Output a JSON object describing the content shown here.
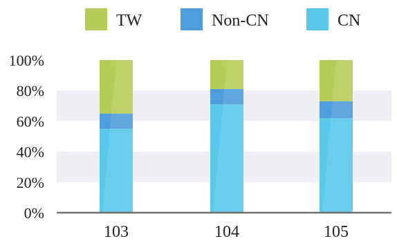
{
  "chart_data": {
    "type": "bar",
    "stacked": true,
    "categories": [
      "103",
      "104",
      "105"
    ],
    "highlighted_category": "105",
    "series": [
      {
        "name": "CN",
        "values": [
          55,
          71,
          62
        ],
        "color": "#5bc8ea"
      },
      {
        "name": "Non-CN",
        "values": [
          10,
          10,
          11
        ],
        "color": "#4f9ddc"
      },
      {
        "name": "TW",
        "values": [
          35,
          19,
          27
        ],
        "color": "#b7cd59"
      }
    ],
    "legend_order": [
      "TW",
      "Non-CN",
      "CN"
    ],
    "legend_position": "top",
    "ylim": [
      0,
      100
    ],
    "yticks": [
      "0%",
      "20%",
      "40%",
      "60%",
      "80%",
      "100%"
    ],
    "grid": "alternating horizontal bands",
    "band_color": "#eeeff4",
    "axis_color": "#707070",
    "highlight_color": "#ec8a3a"
  }
}
